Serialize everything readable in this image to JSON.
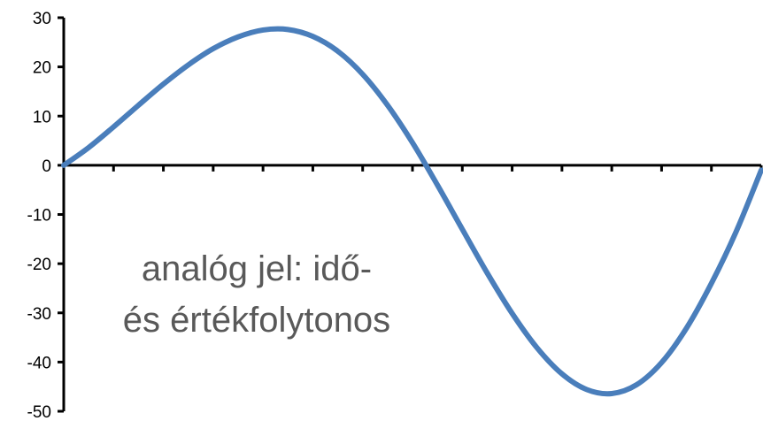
{
  "chart_data": {
    "type": "line",
    "title": "",
    "xlabel": "",
    "ylabel": "",
    "ylim": [
      -50,
      30
    ],
    "yticks": [
      "30",
      "20",
      "10",
      "0",
      "-10",
      "-20",
      "-30",
      "-40",
      "-50"
    ],
    "x_tick_count": 14,
    "grid": false,
    "legend": "none",
    "x": [
      0,
      0.5,
      1,
      1.5,
      2,
      2.5,
      3,
      3.5,
      4,
      4.5,
      5,
      5.5,
      6,
      6.5,
      7,
      7.5,
      8,
      8.5,
      9,
      9.5,
      10,
      10.5,
      11,
      11.5,
      12,
      12.5,
      13,
      13.5,
      14
    ],
    "series": [
      {
        "name": "",
        "color": "#4A7EBB",
        "values": [
          0,
          3.6,
          7.8,
          12.2,
          16.5,
          20.4,
          23.7,
          26.1,
          27.5,
          27.6,
          26.2,
          23.2,
          18.5,
          12.2,
          4.6,
          -4.0,
          -13.0,
          -21.9,
          -30.1,
          -37.1,
          -42.4,
          -45.6,
          -46.4,
          -44.6,
          -40.1,
          -33.1,
          -24.0,
          -13.4,
          -1.0
        ]
      }
    ],
    "annotation": {
      "line1": "analóg jel: idő-",
      "line2": "és értékfolytonos"
    }
  }
}
